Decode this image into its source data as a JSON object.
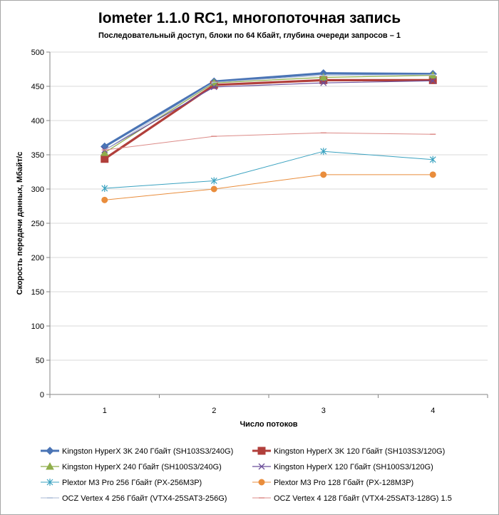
{
  "chart_data": {
    "type": "line",
    "title": "Iometer 1.1.0 RC1, многопоточная запись",
    "subtitle": "Последовательный  доступ, блоки  по 64 Кбайт,  глубина очереди запросов – 1",
    "xlabel": "Число  потоков",
    "ylabel": "Скорость  передачи данных, Мбайт/с",
    "categories": [
      "1",
      "2",
      "3",
      "4"
    ],
    "ylim": [
      0,
      500
    ],
    "yticks": [
      0,
      50,
      100,
      150,
      200,
      250,
      300,
      350,
      400,
      450,
      500
    ],
    "grid": true,
    "legend_position": "bottom",
    "series": [
      {
        "name": "Kingston HyperX  3K 240 Гбайт (SH103S3/240G)",
        "values": [
          362,
          457,
          469,
          468
        ],
        "color": "#4a74b5",
        "marker": "diamond",
        "width": 3.2
      },
      {
        "name": "Kingston HyperX  3K 120 Гбайт (SH103S3/120G)",
        "values": [
          344,
          452,
          459,
          459
        ],
        "color": "#b13f3b",
        "marker": "square",
        "width": 3.2
      },
      {
        "name": "Kingston HyperX  240 Гбайт  (SH100S3/240G)",
        "values": [
          353,
          455,
          463,
          466
        ],
        "color": "#8fae4a",
        "marker": "triangle",
        "width": 1.2
      },
      {
        "name": "Kingston HyperX  120 Гбайт (SH100S3/120G)",
        "values": [
          357,
          449,
          455,
          458
        ],
        "color": "#6b4f9a",
        "marker": "x",
        "width": 1.2
      },
      {
        "name": "Plextor M3 Pro 256 Гбайт (PX-256M3P)",
        "values": [
          301,
          312,
          355,
          343
        ],
        "color": "#3aa2c0",
        "marker": "star",
        "width": 1.0
      },
      {
        "name": "Plextor M3 Pro 128 Гбайт (PX-128M3P)",
        "values": [
          284,
          300,
          321,
          321
        ],
        "color": "#e98d3c",
        "marker": "circle",
        "width": 1.0
      },
      {
        "name": "OCZ Vertex  4 256 Гбайт (VTX4-25SAT3-256G)",
        "values": [
          357,
          456,
          466,
          467
        ],
        "color": "#a9bad6",
        "marker": "dash",
        "width": 1.0
      },
      {
        "name": "OCZ Vertex  4 128 Гбайт (VTX4-25SAT3-128G)  1.5",
        "values": [
          357,
          377,
          382,
          380
        ],
        "color": "#dc8b88",
        "marker": "dash",
        "width": 1.0
      }
    ]
  }
}
